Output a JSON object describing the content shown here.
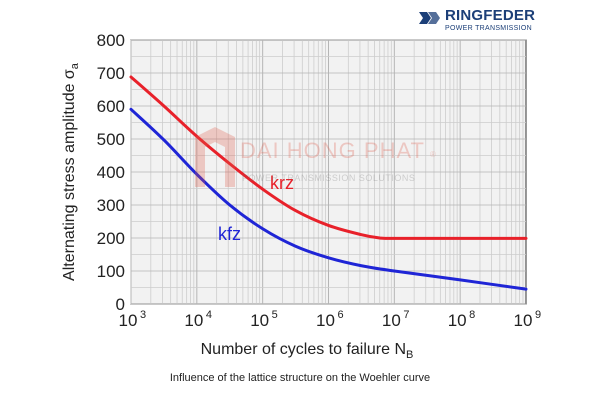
{
  "brand": {
    "name": "RINGFEDER",
    "tagline": "POWER TRANSMISSION",
    "color": "#1c3f78"
  },
  "watermark": {
    "name": "DAI HONG PHAT",
    "registered": "®",
    "tagline": "POWER TRANSMISSION SOLUTIONS"
  },
  "caption": "Influence of the lattice structure on the Woehler curve",
  "chart_data": {
    "type": "line",
    "title": "",
    "xlabel": "Number of cycles to failure N_B",
    "ylabel": "Alternating stress amplitude σ_a",
    "x_scale": "log10",
    "xlim": [
      1000,
      1000000000
    ],
    "ylim": [
      0,
      800
    ],
    "x_ticks": [
      {
        "value": 1000,
        "base": "10",
        "exp": "3"
      },
      {
        "value": 10000,
        "base": "10",
        "exp": "4"
      },
      {
        "value": 100000,
        "base": "10",
        "exp": "5"
      },
      {
        "value": 1000000,
        "base": "10",
        "exp": "6"
      },
      {
        "value": 10000000,
        "base": "10",
        "exp": "7"
      },
      {
        "value": 100000000,
        "base": "10",
        "exp": "8"
      },
      {
        "value": 1000000000,
        "base": "10",
        "exp": "9"
      }
    ],
    "y_ticks": [
      0,
      100,
      200,
      300,
      400,
      500,
      600,
      700,
      800
    ],
    "grid": true,
    "series": [
      {
        "name": "krz",
        "color": "#e8212a",
        "points": [
          [
            1000,
            688
          ],
          [
            3162,
            600
          ],
          [
            10000,
            508
          ],
          [
            31623,
            425
          ],
          [
            100000,
            348
          ],
          [
            316228,
            283
          ],
          [
            1000000,
            238
          ],
          [
            3162278,
            210
          ],
          [
            6000000,
            200
          ],
          [
            10000000,
            199
          ],
          [
            100000000,
            199
          ],
          [
            1000000000,
            199
          ]
        ]
      },
      {
        "name": "kfz",
        "color": "#1f25d6",
        "points": [
          [
            1000,
            590
          ],
          [
            3162,
            497
          ],
          [
            10000,
            393
          ],
          [
            31623,
            300
          ],
          [
            100000,
            228
          ],
          [
            316228,
            175
          ],
          [
            1000000,
            140
          ],
          [
            3162278,
            116
          ],
          [
            10000000,
            100
          ],
          [
            100000000,
            73
          ],
          [
            1000000000,
            45
          ]
        ]
      }
    ]
  }
}
